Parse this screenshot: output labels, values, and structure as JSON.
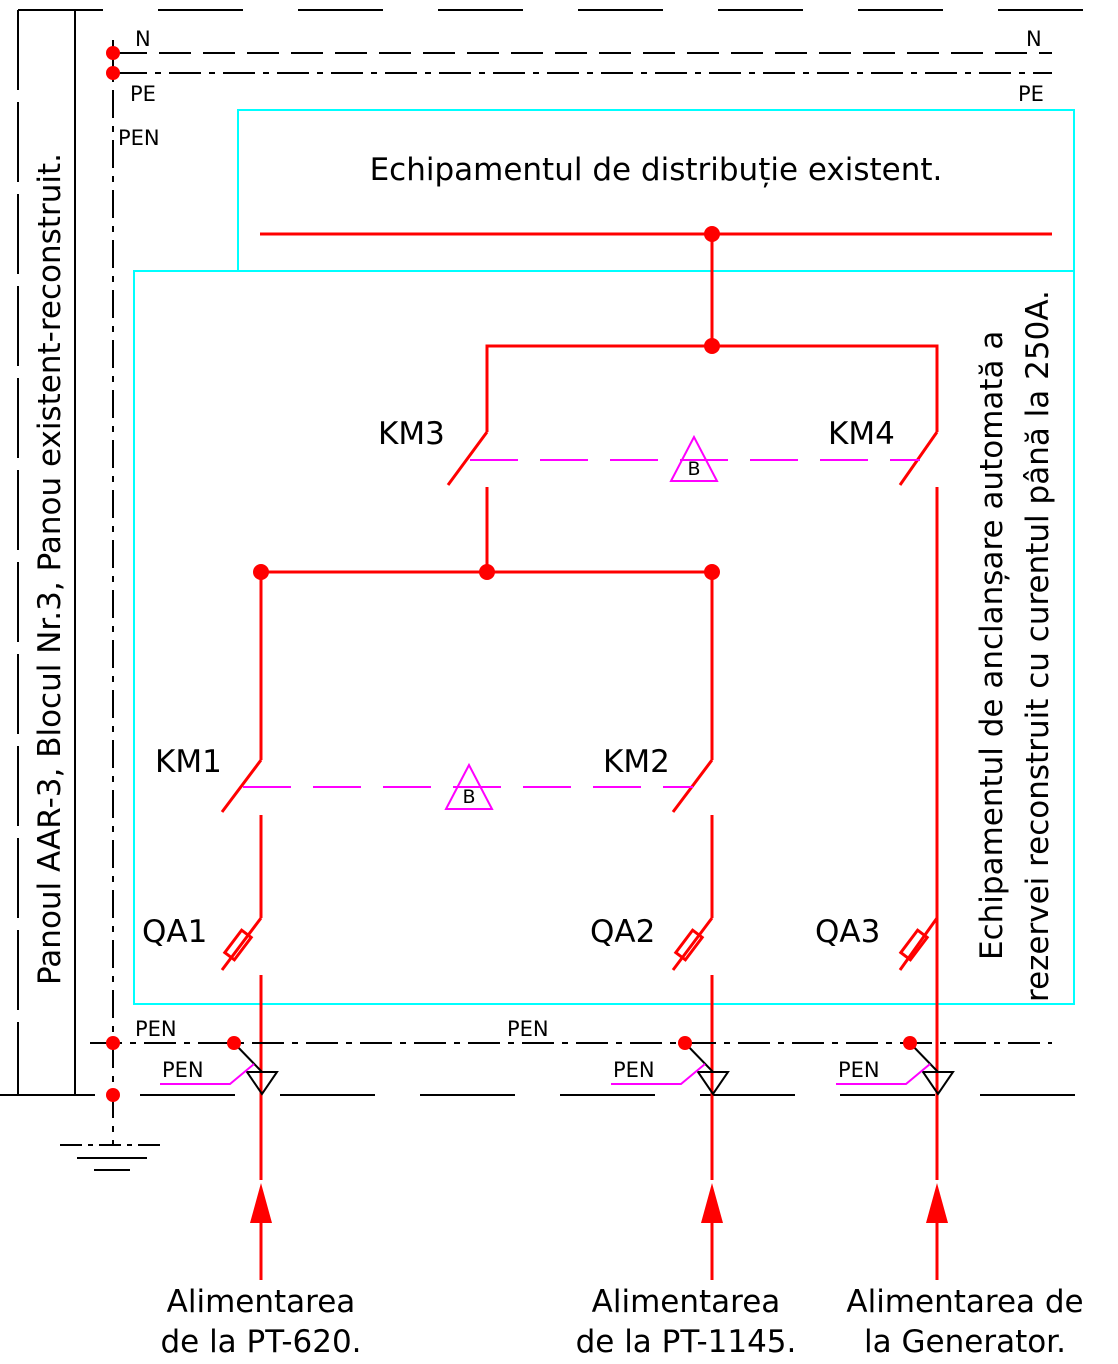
{
  "panel_label": "Panoul AAR-3, Blocul Nr.3, Panou existent-reconstruit.",
  "bus_labels": {
    "n_left": "N",
    "n_right": "N",
    "pe_left": "PE",
    "pe_right": "PE",
    "pen_top": "PEN",
    "pen_bottom_left": "PEN",
    "pen_bottom_mid": "PEN"
  },
  "distribution_box": {
    "title": "Echipamentul de distribuție existent."
  },
  "ats_box": {
    "title_line1": "Echipamentul de anclanșare automată a",
    "title_line2": "rezervei reconstruit cu curentul până la 250A."
  },
  "contactors": {
    "km1": "KM1",
    "km2": "KM2",
    "km3": "KM3",
    "km4": "KM4",
    "interlock_upper": "B",
    "interlock_lower": "B"
  },
  "breakers": {
    "qa1": "QA1",
    "qa2": "QA2",
    "qa3": "QA3"
  },
  "pen_taps": [
    "PEN",
    "PEN",
    "PEN"
  ],
  "feeders": [
    {
      "line1": "Alimentarea",
      "line2": "de la PT-620."
    },
    {
      "line1": "Alimentarea",
      "line2": "de la PT-1145."
    },
    {
      "line1": "Alimentarea de",
      "line2": "la Generator."
    }
  ],
  "colors": {
    "power_line": "#ff0000",
    "interlock": "#ff00ff",
    "enclosure": "#00ffff",
    "frame": "#000000"
  }
}
